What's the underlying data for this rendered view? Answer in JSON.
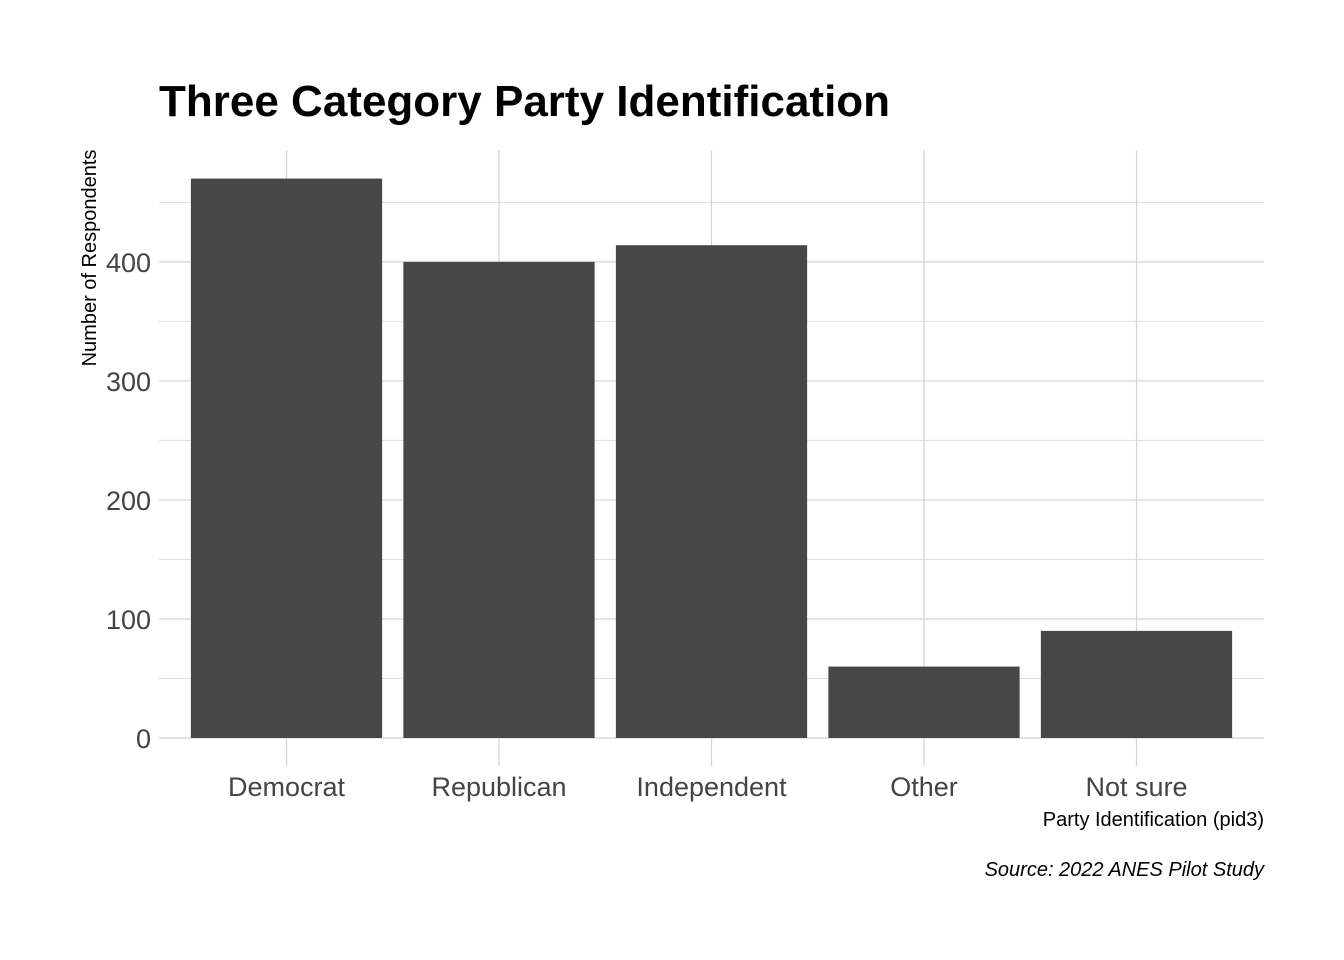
{
  "chart_data": {
    "type": "bar",
    "title": "Three Category Party Identification",
    "xlabel": "Party Identification (pid3)",
    "ylabel": "Number of Respondents",
    "caption": "Source: 2022 ANES Pilot Study",
    "categories": [
      "Democrat",
      "Republican",
      "Independent",
      "Other",
      "Not sure"
    ],
    "values": [
      470,
      400,
      414,
      60,
      90
    ],
    "ylim": [
      0,
      494
    ],
    "yticks": [
      0,
      100,
      200,
      300,
      400
    ],
    "grid": true,
    "legend": "none",
    "colors": {
      "bar": "#474747",
      "grid": "#d3d3d3",
      "text": "#000000",
      "ticks": "#444444"
    }
  }
}
